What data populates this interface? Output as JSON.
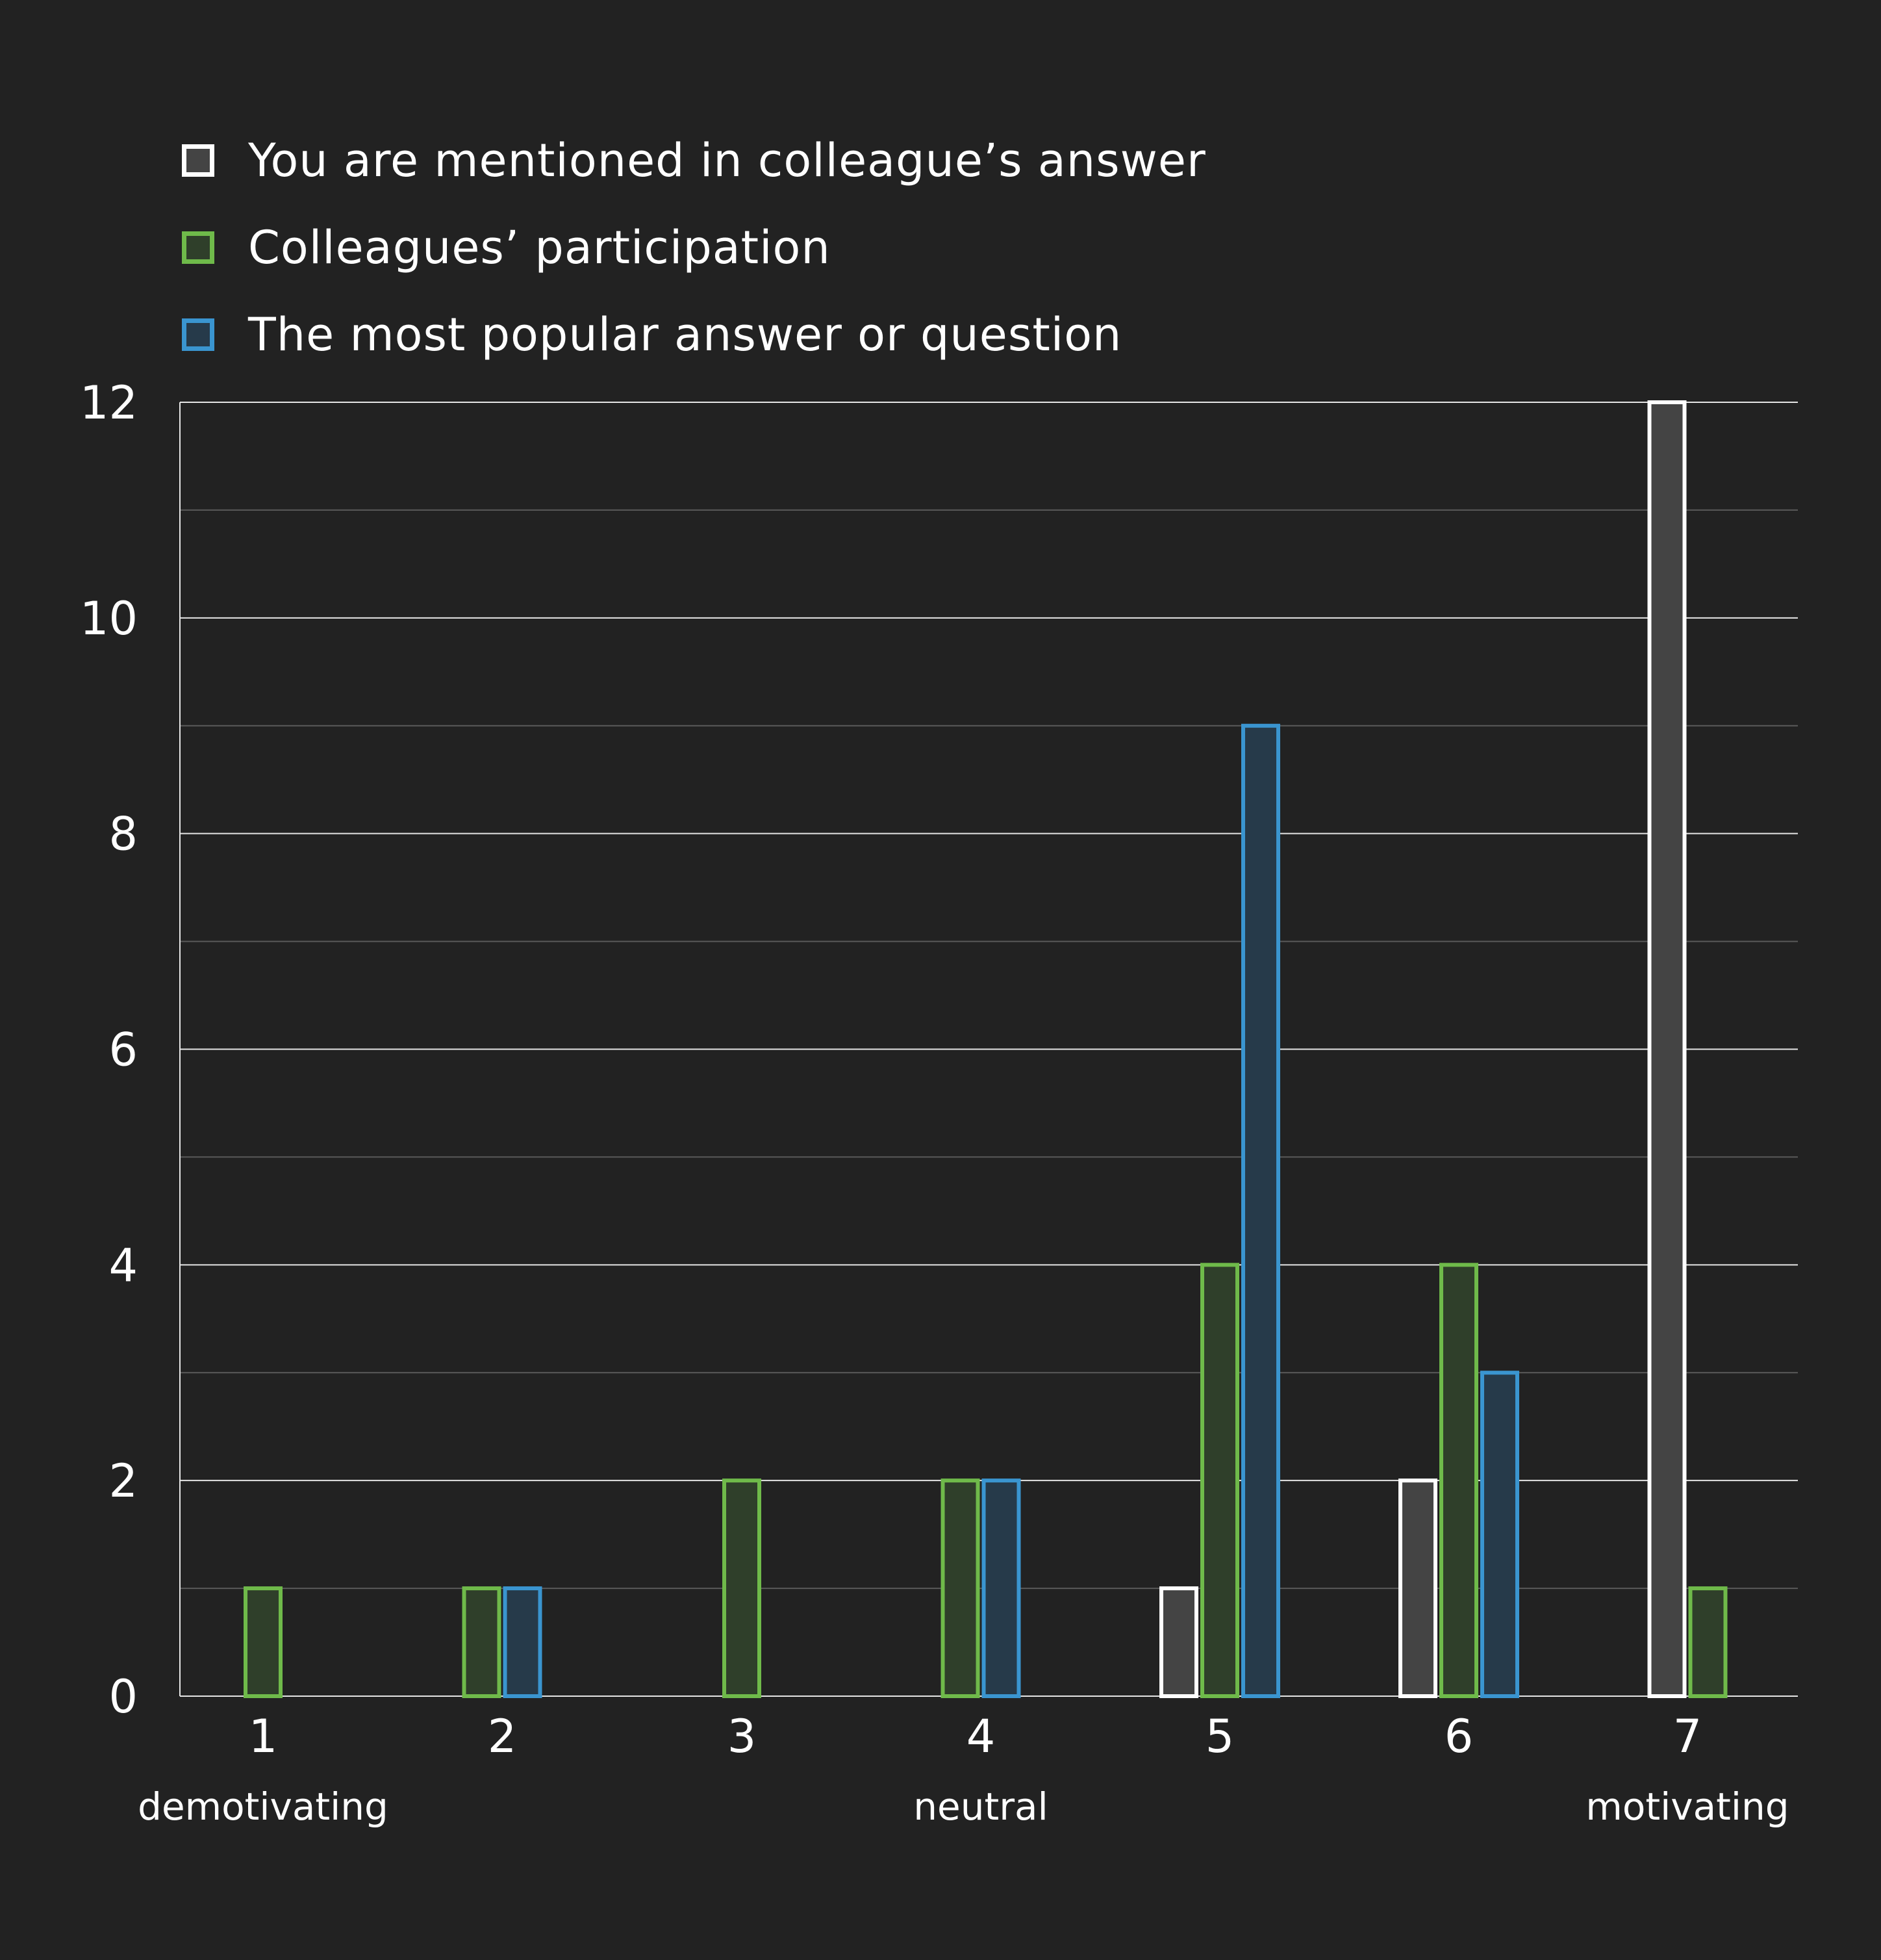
{
  "legend": [
    {
      "label": "You are mentioned in colleague’s answer",
      "color": "#ffffff",
      "fill": "#444444"
    },
    {
      "label": "Colleagues’ participation",
      "color": "#6fba4a",
      "fill": "#2f3f2a"
    },
    {
      "label": "The most popular answer or question",
      "color": "#3a95d0",
      "fill": "#263a4a"
    }
  ],
  "chart_data": {
    "type": "bar",
    "categories": [
      "1",
      "2",
      "3",
      "4",
      "5",
      "6",
      "7"
    ],
    "category_sublabels": [
      "demotivating",
      "",
      "",
      "neutral",
      "",
      "",
      "motivating"
    ],
    "series": [
      {
        "name": "You are mentioned in colleague’s answer",
        "values": [
          0,
          0,
          0,
          0,
          1,
          2,
          12
        ],
        "stroke": "#ffffff",
        "fill": "#444444"
      },
      {
        "name": "Colleagues’ participation",
        "values": [
          1,
          1,
          2,
          2,
          4,
          4,
          1
        ],
        "stroke": "#6fba4a",
        "fill": "#2f3f2a"
      },
      {
        "name": "The most popular answer or question",
        "values": [
          0,
          1,
          0,
          2,
          9,
          3,
          0
        ],
        "stroke": "#3a95d0",
        "fill": "#263a4a"
      }
    ],
    "yticks": [
      "0",
      "2",
      "4",
      "6",
      "8",
      "10",
      "12"
    ],
    "ylim": [
      0,
      12
    ],
    "grid": true,
    "legend_position": "top-left"
  }
}
